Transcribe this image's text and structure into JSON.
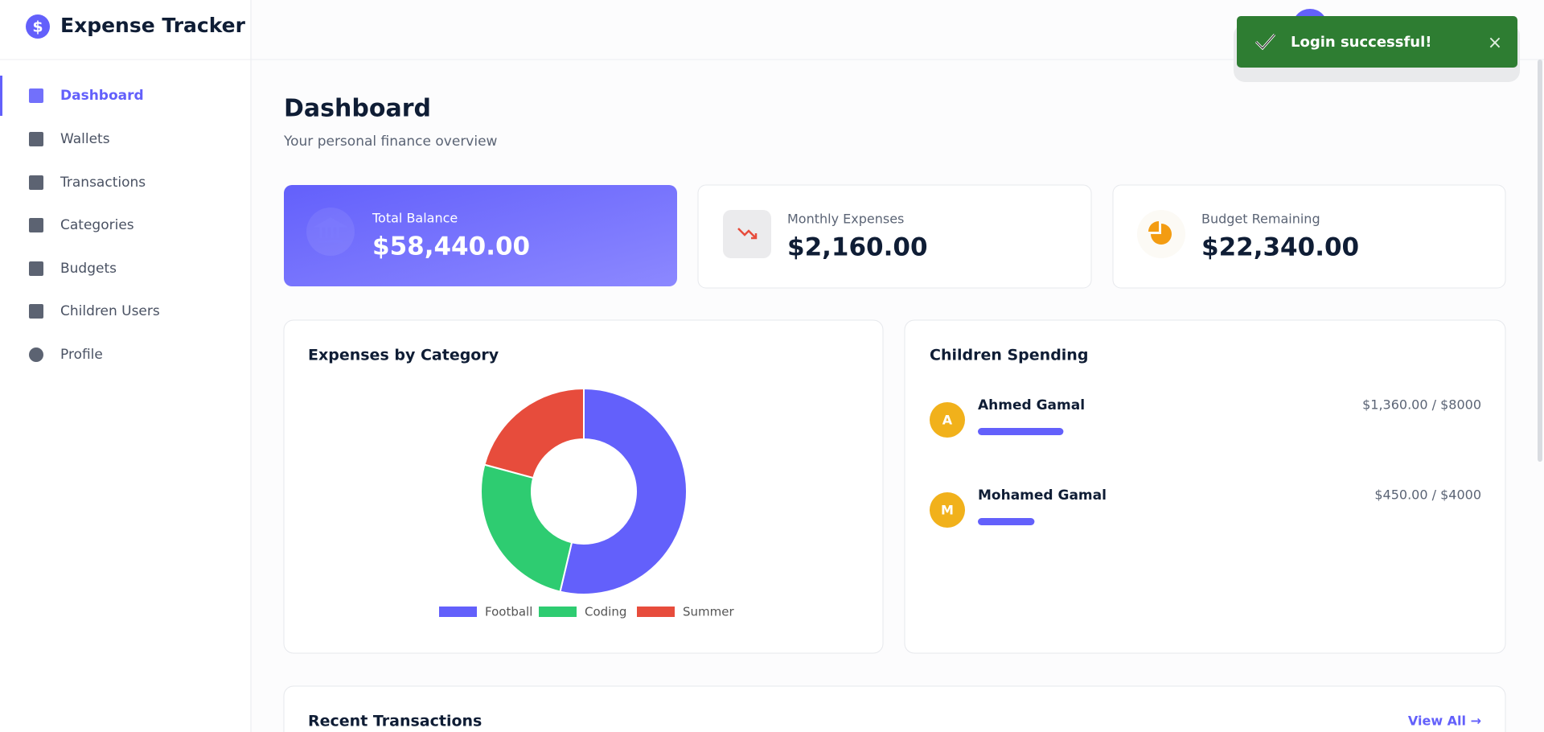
{
  "brand": "Expense Tracker",
  "nav": [
    "Dashboard",
    "Wallets",
    "Transactions",
    "Categories",
    "Budgets",
    "Children Users",
    "Profile"
  ],
  "page": {
    "title": "Dashboard",
    "subtitle": "Your personal finance overview"
  },
  "cards": [
    {
      "label": "Total Balance",
      "value": "$58,440.00"
    },
    {
      "label": "Monthly Expenses",
      "value": "$2,160.00"
    },
    {
      "label": "Budget Remaining",
      "value": "$22,340.00"
    }
  ],
  "chart_data": {
    "type": "pie",
    "title": "Expenses by Category",
    "donut": true,
    "categories": [
      "Football",
      "Coding",
      "Summer"
    ],
    "values": [
      53.7,
      25.5,
      20.8
    ],
    "colors": [
      "#6360fb",
      "#2ecc71",
      "#e74c3c"
    ]
  },
  "children": {
    "title": "Children Spending",
    "items": [
      {
        "initial": "A",
        "name": "Ahmed Gamal",
        "spent": 1360,
        "limit": 8000,
        "label": "$1,360.00 / $8000"
      },
      {
        "initial": "M",
        "name": "Mohamed Gamal",
        "spent": 450,
        "limit": 4000,
        "label": "$450.00 / $4000"
      }
    ]
  },
  "recent": {
    "title": "Recent Transactions",
    "link": "View All →"
  },
  "toast": {
    "message": "Login successful!",
    "close": "×"
  }
}
